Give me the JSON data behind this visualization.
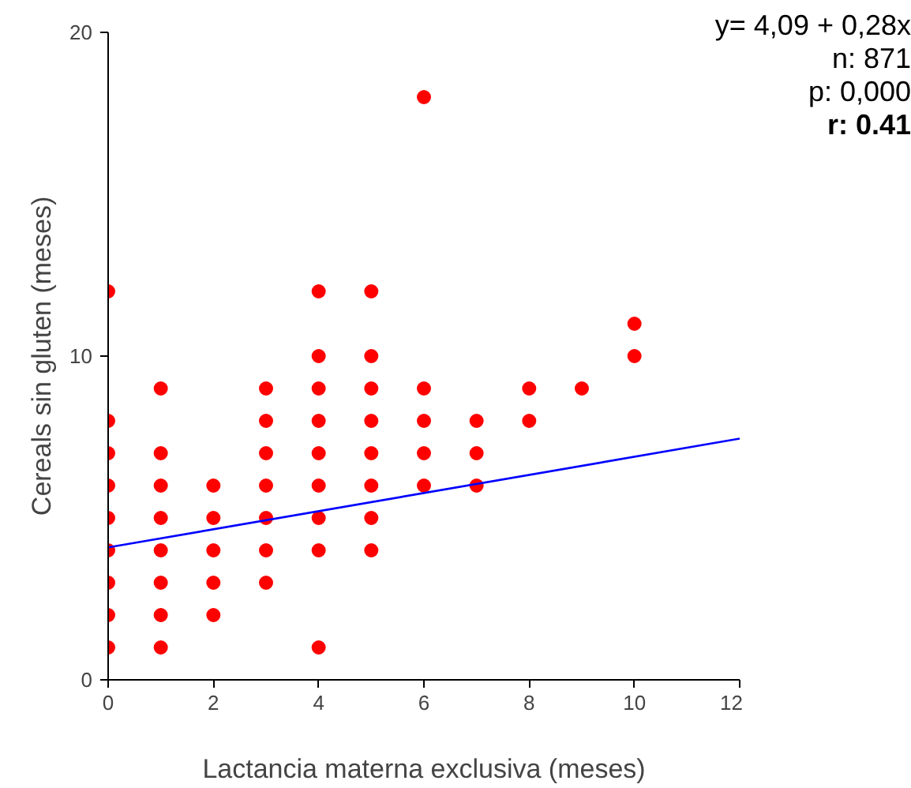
{
  "chart_data": {
    "type": "scatter",
    "xlabel": "Lactancia materna exclusiva (meses)",
    "ylabel": "Cereals sin gluten (meses)",
    "annotations": [
      "y= 4,09 + 0,28x",
      "n: 871",
      "p: 0,000",
      "r: 0.41"
    ],
    "xlim": [
      0,
      12
    ],
    "xticks": [
      0,
      2,
      4,
      6,
      8,
      10,
      12
    ],
    "ylim": [
      0,
      20
    ],
    "yticks": [
      0,
      10,
      20
    ],
    "grid": false,
    "series": [
      {
        "color": "#ff0000",
        "marker": "circle",
        "x": [
          0,
          0,
          0,
          0,
          0,
          0,
          0,
          0,
          0,
          1,
          1,
          1,
          1,
          1,
          1,
          1,
          1,
          2,
          2,
          2,
          2,
          2,
          3,
          3,
          3,
          3,
          3,
          3,
          3,
          4,
          4,
          4,
          4,
          4,
          4,
          4,
          4,
          4,
          5,
          5,
          5,
          5,
          5,
          5,
          5,
          5,
          6,
          6,
          6,
          6,
          6,
          7,
          7,
          7,
          8,
          8,
          9,
          10,
          10
        ],
        "values": [
          12,
          8,
          7,
          6,
          5,
          4,
          3,
          2,
          1,
          9,
          7,
          6,
          5,
          4,
          3,
          2,
          1,
          6,
          5,
          4,
          3,
          2,
          9,
          8,
          7,
          6,
          5,
          4,
          3,
          12,
          10,
          9,
          8,
          7,
          6,
          5,
          4,
          1,
          12,
          10,
          9,
          8,
          7,
          6,
          5,
          4,
          18,
          9,
          8,
          7,
          6,
          8,
          7,
          6,
          9,
          8,
          9,
          11,
          10
        ]
      },
      {
        "type": "line",
        "color": "#0000ff",
        "line_style": "solid",
        "x": [
          0,
          12
        ],
        "values": [
          4.09,
          7.45
        ]
      }
    ]
  }
}
